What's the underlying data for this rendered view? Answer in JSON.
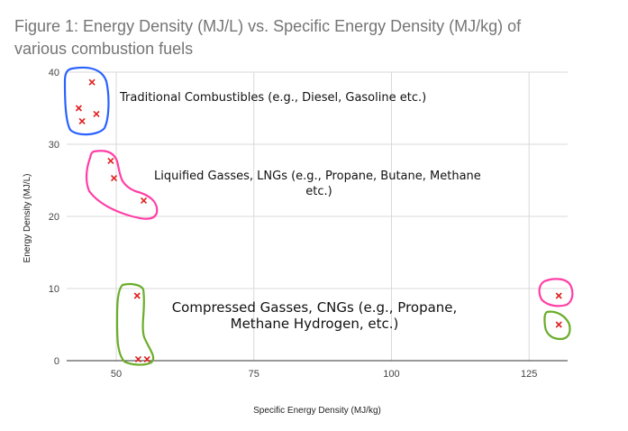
{
  "chart_data": {
    "type": "scatter",
    "title_line1": "Figure 1: Energy Density (MJ/L) vs. Specific Energy Density (MJ/kg) of",
    "title_line2": "various combustion fuels",
    "xlabel": "Specific Energy Density (MJ/kg)",
    "ylabel": "Energy Density (MJ/L)",
    "xlim": [
      41,
      132
    ],
    "ylim": [
      0,
      40
    ],
    "x_ticks": [
      50,
      75,
      100,
      125
    ],
    "y_ticks": [
      0,
      10,
      20,
      30,
      40
    ],
    "grid": true,
    "marker_color": "#e02020",
    "points": [
      {
        "x": 43.2,
        "y": 35.0
      },
      {
        "x": 43.8,
        "y": 33.2
      },
      {
        "x": 45.6,
        "y": 38.6
      },
      {
        "x": 46.4,
        "y": 34.2
      },
      {
        "x": 49.0,
        "y": 27.7
      },
      {
        "x": 49.6,
        "y": 25.3
      },
      {
        "x": 55.0,
        "y": 22.2
      },
      {
        "x": 53.8,
        "y": 9.0
      },
      {
        "x": 54.0,
        "y": 0.2
      },
      {
        "x": 55.6,
        "y": 0.2
      },
      {
        "x": 130.4,
        "y": 9.0
      },
      {
        "x": 130.4,
        "y": 5.0
      }
    ],
    "groups": [
      {
        "label": "Traditional Combustibles (e.g., Diesel, Gasoline etc.)",
        "color": "#2962ff"
      },
      {
        "label_line1": "Liquified Gasses, LNGs (e.g., Propane, Butane, Methane",
        "label_line2": "etc.)",
        "color": "#ff3ea5"
      },
      {
        "label_line1": "Compressed Gasses, CNGs (e.g., Propane,",
        "label_line2": "Methane Hydrogen, etc.)",
        "color": "#6aad2a"
      },
      {
        "color": "#ff3ea5"
      },
      {
        "color": "#6aad2a"
      }
    ]
  }
}
